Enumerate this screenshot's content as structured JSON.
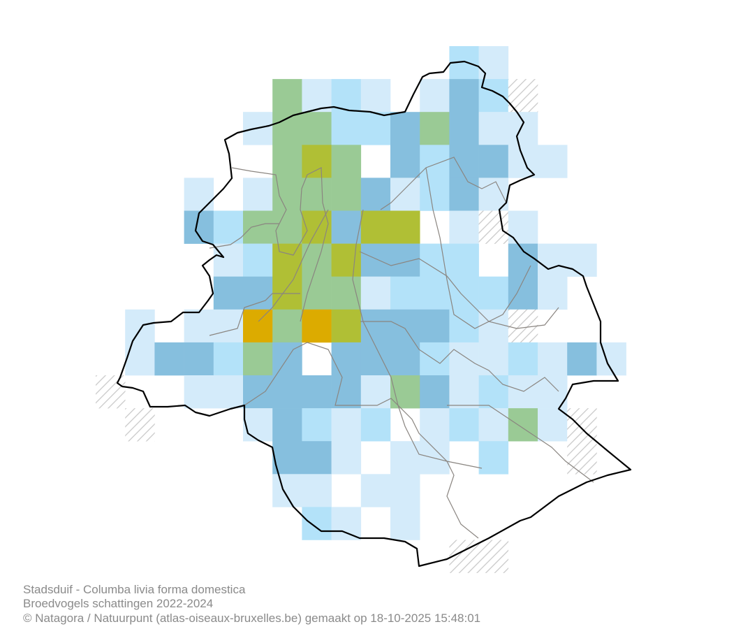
{
  "caption": {
    "species": "Stadsduif - Columba livia forma domestica",
    "subtitle": "Broedvogels schattingen 2022-2024",
    "credits": "© Natagora / Natuurpunt (atlas-oiseaux-bruxelles.be) gemaakt op 18-10-2025 15:48:01"
  },
  "legend_colors": {
    "1": "#d4ebfa",
    "2": "#b3e2f9",
    "3": "#86bfde",
    "4": "#9aca95",
    "5": "#b0bf35",
    "6": "#dcab00",
    "H": "hatched-grey"
  },
  "grid": [
    "............21...",
    "......4121.132H..",
    ".....1442234311..",
    "......4540323311.",
    "...1.1444312310..",
    "...32445355.1H1..",
    "....1254533220311",
    "....3354412222310",
    ".1011646533321H.0",
    ".13324303332112131",
    "H..11333314312110",
    ".H...13212012141H",
    "......33101102..H",
    "......11011......",
    ".......2101......",
    "............HH..."
  ]
}
